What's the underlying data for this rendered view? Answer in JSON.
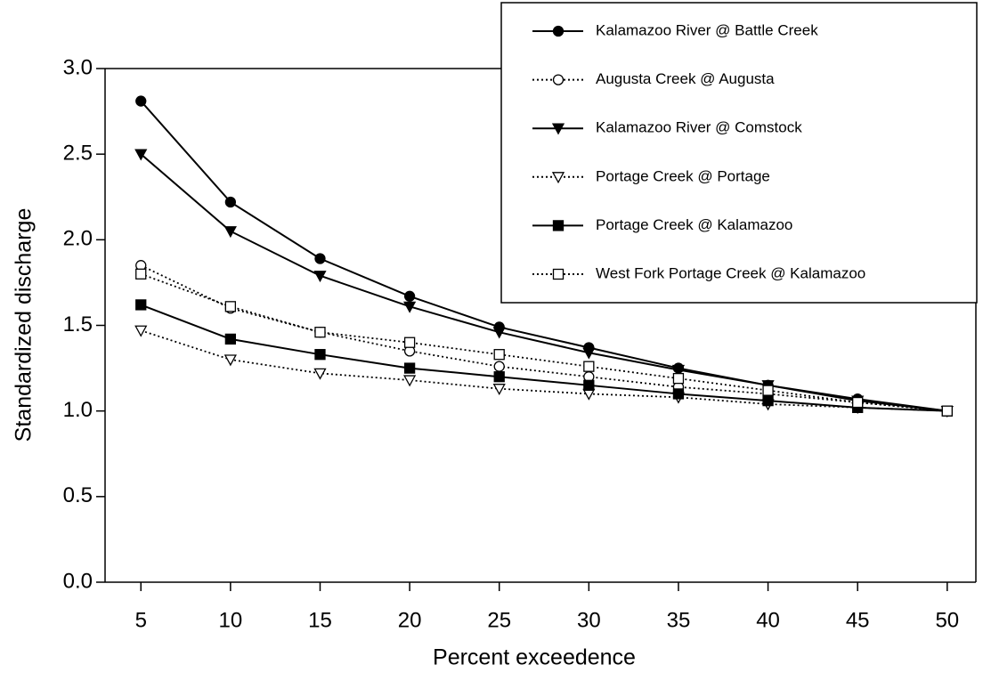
{
  "chart_data": {
    "type": "line",
    "x_label": "Percent exceedence",
    "y_label": "Standardized discharge",
    "x": [
      5,
      10,
      15,
      20,
      25,
      30,
      35,
      40,
      45,
      50
    ],
    "xlim": [
      3,
      51.6
    ],
    "xticks": [
      5,
      10,
      15,
      20,
      25,
      30,
      35,
      40,
      45,
      50
    ],
    "ylim": [
      0,
      3
    ],
    "yticks": [
      {
        "value": 0,
        "label": "0.0"
      },
      0.5,
      {
        "value": 1,
        "label": "1.0"
      },
      1.5,
      {
        "value": 2,
        "label": "2.0"
      },
      2.5,
      {
        "value": 3,
        "label": "3.0"
      }
    ],
    "grid": false,
    "legend": "upper right",
    "series": [
      {
        "name": "Kalamazoo River @ Battle Creek",
        "color": "#000000",
        "marker": "circle",
        "filled": true,
        "dash": "solid",
        "values": [
          2.81,
          2.22,
          1.89,
          1.67,
          1.49,
          1.37,
          1.25,
          1.15,
          1.07,
          1.0
        ]
      },
      {
        "name": "Augusta Creek @ Augusta",
        "color": "#000000",
        "marker": "circle",
        "filled": false,
        "dash": "dotted",
        "values": [
          1.85,
          1.6,
          1.46,
          1.35,
          1.26,
          1.2,
          1.14,
          1.1,
          1.05,
          1.0
        ]
      },
      {
        "name": "Kalamazoo River @ Comstock",
        "color": "#000000",
        "marker": "triangle-down",
        "filled": true,
        "dash": "solid",
        "values": [
          2.5,
          2.05,
          1.79,
          1.61,
          1.46,
          1.34,
          1.24,
          1.15,
          1.06,
          1.0
        ]
      },
      {
        "name": "Portage Creek @ Portage",
        "color": "#000000",
        "marker": "triangle-down",
        "filled": false,
        "dash": "dotted",
        "values": [
          1.47,
          1.3,
          1.22,
          1.18,
          1.13,
          1.1,
          1.08,
          1.04,
          1.02,
          1.0
        ]
      },
      {
        "name": "Portage Creek @ Kalamazoo",
        "color": "#000000",
        "marker": "square",
        "filled": true,
        "dash": "solid",
        "values": [
          1.62,
          1.42,
          1.33,
          1.25,
          1.2,
          1.15,
          1.1,
          1.06,
          1.02,
          1.0
        ]
      },
      {
        "name": "West Fork Portage Creek @ Kalamazoo",
        "color": "#000000",
        "marker": "square",
        "filled": false,
        "dash": "dotted",
        "values": [
          1.8,
          1.61,
          1.46,
          1.4,
          1.33,
          1.26,
          1.19,
          1.12,
          1.05,
          1.0
        ]
      }
    ]
  }
}
